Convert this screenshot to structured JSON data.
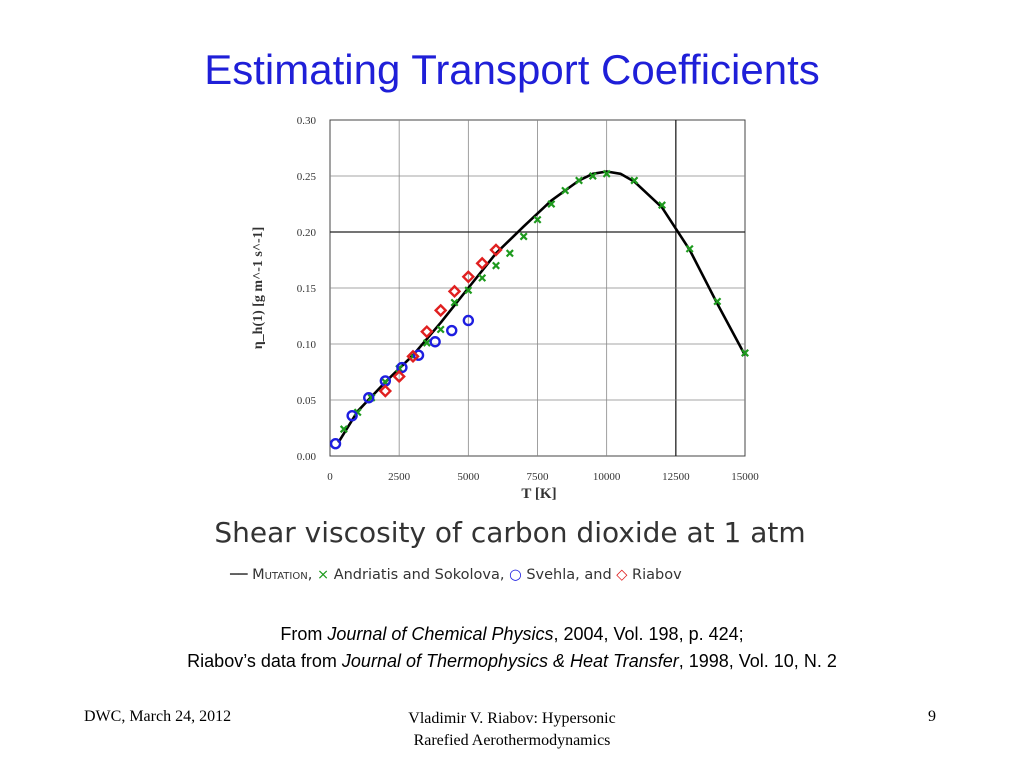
{
  "slide": {
    "title": "Estimating Transport Coefficients",
    "caption": "Shear viscosity of carbon dioxide at 1 atm",
    "source_line1": {
      "pre": "From ",
      "journal": "Journal of Chemical Physics",
      "post": ", 2004, Vol. 198, p. 424;"
    },
    "source_line2": {
      "pre": "Riabov’s data from ",
      "journal": "Journal of Thermophysics & Heat Transfer",
      "post": ", 1998, Vol. 10, N. 2"
    },
    "footer_left": "DWC, March 24, 2012",
    "footer_center_line1": "Vladimir V. Riabov: Hypersonic",
    "footer_center_line2": "Rarefied Aerothermodynamics",
    "footer_right": "9"
  },
  "legend": {
    "mutation_label": "Mutation",
    "mutation_sep": ",",
    "andriatis_label": " Andriatis and Sokolova, ",
    "svehla_label": " Svehla, and ",
    "riabov_label": " Riabov"
  },
  "chart_data": {
    "type": "scatter",
    "xlabel": "T [K]",
    "ylabel": "η_h(1) [g m^-1 s^-1]",
    "xlim": [
      0,
      15000
    ],
    "ylim": [
      0,
      0.3
    ],
    "x_ticks": [
      "0",
      "2500",
      "5000",
      "7500",
      "10000",
      "12500",
      "15000"
    ],
    "y_ticks": [
      "0.00",
      "0.05",
      "0.10",
      "0.15",
      "0.20",
      "0.25",
      "0.30"
    ],
    "grid": true,
    "series": [
      {
        "name": "Mutation",
        "style": "line",
        "color": "#000000",
        "x": [
          300,
          1000,
          2000,
          3000,
          4000,
          5000,
          6000,
          7000,
          8000,
          9000,
          9500,
          10000,
          10500,
          11000,
          12000,
          13000,
          14000,
          15000
        ],
        "y": [
          0.012,
          0.04,
          0.066,
          0.09,
          0.119,
          0.15,
          0.181,
          0.205,
          0.228,
          0.246,
          0.252,
          0.254,
          0.252,
          0.245,
          0.222,
          0.184,
          0.136,
          0.09
        ]
      },
      {
        "name": "Andriatis and Sokolova",
        "style": "x",
        "color": "#1e9a1e",
        "x": [
          500,
          1000,
          1500,
          2000,
          2500,
          3000,
          3500,
          4000,
          4500,
          5000,
          5500,
          6000,
          6500,
          7000,
          7500,
          8000,
          8500,
          9000,
          9500,
          10000,
          11000,
          12000,
          13000,
          14000,
          15000
        ],
        "y": [
          0.024,
          0.039,
          0.052,
          0.066,
          0.078,
          0.089,
          0.101,
          0.113,
          0.137,
          0.148,
          0.159,
          0.17,
          0.181,
          0.196,
          0.211,
          0.225,
          0.237,
          0.246,
          0.25,
          0.252,
          0.246,
          0.224,
          0.185,
          0.138,
          0.092
        ]
      },
      {
        "name": "Svehla",
        "style": "circle",
        "color": "#1e1ee0",
        "x": [
          200,
          800,
          1400,
          2000,
          2600,
          3200,
          3800,
          4400,
          5000
        ],
        "y": [
          0.011,
          0.036,
          0.052,
          0.067,
          0.079,
          0.09,
          0.102,
          0.112,
          0.121
        ]
      },
      {
        "name": "Riabov",
        "style": "diamond",
        "color": "#e02020",
        "x": [
          2000,
          2500,
          3000,
          3500,
          4000,
          4500,
          5000,
          5500,
          6000
        ],
        "y": [
          0.058,
          0.071,
          0.089,
          0.111,
          0.13,
          0.147,
          0.16,
          0.172,
          0.184
        ]
      }
    ]
  }
}
